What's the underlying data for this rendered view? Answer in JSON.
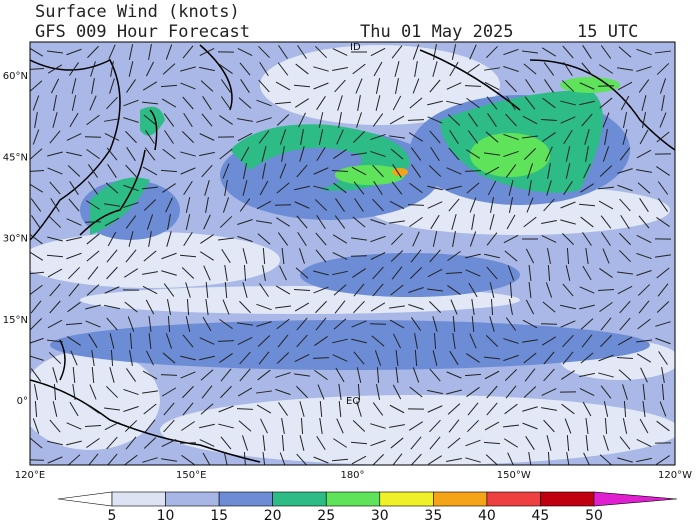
{
  "header": {
    "title": "Surface Wind (knots)",
    "subtitle": "GFS 009 Hour Forecast",
    "date": "Thu 01 May 2025",
    "time": "15 UTC"
  },
  "lat_labels": [
    "60°N",
    "45°N",
    "30°N",
    "15°N",
    "0°"
  ],
  "lon_labels": [
    "120°E",
    "150°E",
    "180°",
    "150°W",
    "120°W"
  ],
  "map_labels": {
    "equator": "EQ",
    "dateline": "ID"
  },
  "colorbar": {
    "ticks": [
      "5",
      "10",
      "15",
      "20",
      "25",
      "30",
      "35",
      "40",
      "45",
      "50"
    ]
  }
}
